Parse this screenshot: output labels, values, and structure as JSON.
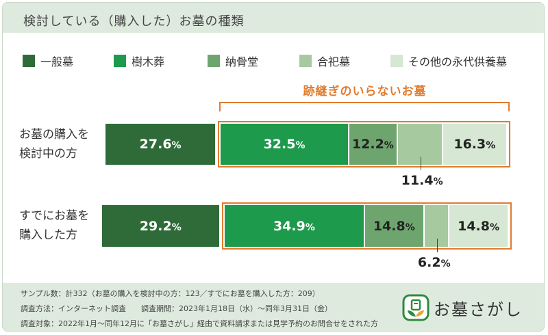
{
  "title": "検討している（購入した）お墓の種類",
  "legend": [
    {
      "label": "一般墓",
      "color": "#2e6b38"
    },
    {
      "label": "樹木葬",
      "color": "#1d9a4b"
    },
    {
      "label": "納骨堂",
      "color": "#6ea56f"
    },
    {
      "label": "合祀墓",
      "color": "#a7c9a0"
    },
    {
      "label": "その他の永代供養墓",
      "color": "#d6e7d3"
    }
  ],
  "bracket_label": "跡継ぎのいらないお墓",
  "chart_data": {
    "type": "bar",
    "orientation": "horizontal",
    "stacked": true,
    "percent": true,
    "categories": [
      "お墓の購入を検討中の方",
      "すでにお墓を購入した方"
    ],
    "category_lines": [
      [
        "お墓の購入を",
        "検討中の方"
      ],
      [
        "すでにお墓を",
        "購入した方"
      ]
    ],
    "series": [
      {
        "name": "一般墓",
        "values": [
          27.6,
          29.2
        ]
      },
      {
        "name": "樹木葬",
        "values": [
          32.5,
          34.9
        ]
      },
      {
        "name": "納骨堂",
        "values": [
          12.2,
          14.8
        ]
      },
      {
        "name": "合祀墓",
        "values": [
          11.4,
          6.2
        ]
      },
      {
        "name": "その他の永代供養墓",
        "values": [
          16.3,
          14.8
        ]
      }
    ],
    "unit": "%",
    "xlim": [
      0,
      100
    ],
    "legend_position": "top",
    "grid": false
  },
  "footnotes": [
    "サンプル数：計332（お墓の購入を検討中の方：123／すでにお墓を購入した方：209）",
    "調査方法：インターネット調査　　調査期間：2023年1月18日（水）〜同年3月31日（金）",
    "調査対象：2022年1月〜同年12月に「お墓さがし」経由で資料請求または見学予約のお問合せをされた方"
  ],
  "logo": {
    "text": "お墓さがし",
    "icon": "gravestone-leaf-icon"
  }
}
